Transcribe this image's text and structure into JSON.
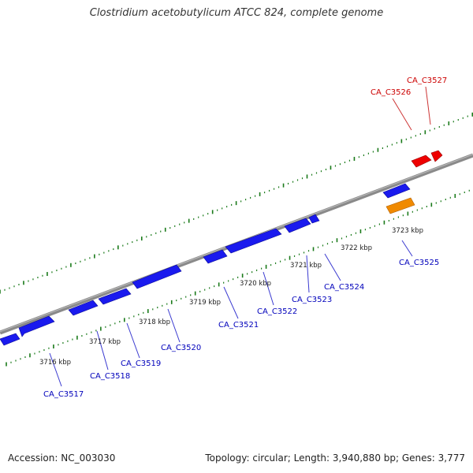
{
  "title": "Clostridium acetobutylicum ATCC 824, complete genome",
  "footer": {
    "accession": "Accession: NC_003030",
    "summary": "Topology: circular; Length: 3,940,880 bp; Genes: 3,777"
  },
  "colors": {
    "forward_gene": "#ee0000",
    "reverse_gene": "#1a1aee",
    "rna_gene": "#f08a00",
    "backbone": "#888888",
    "ticks": "#1a7a1a",
    "forward_label": "#cc0000",
    "reverse_label": "#0000bb",
    "kbp_label": "#222222"
  },
  "kbp_labels": [
    {
      "text": "3716 kbp"
    },
    {
      "text": "3717 kbp"
    },
    {
      "text": "3718 kbp"
    },
    {
      "text": "3719 kbp"
    },
    {
      "text": "3720 kbp"
    },
    {
      "text": "3721 kbp"
    },
    {
      "text": "3722 kbp"
    },
    {
      "text": "3723 kbp"
    }
  ],
  "gene_labels": [
    {
      "text": "CA_C3517",
      "strand": "reverse"
    },
    {
      "text": "CA_C3518",
      "strand": "reverse"
    },
    {
      "text": "CA_C3519",
      "strand": "reverse"
    },
    {
      "text": "CA_C3520",
      "strand": "reverse"
    },
    {
      "text": "CA_C3521",
      "strand": "reverse"
    },
    {
      "text": "CA_C3522",
      "strand": "reverse"
    },
    {
      "text": "CA_C3523",
      "strand": "reverse"
    },
    {
      "text": "CA_C3524",
      "strand": "reverse"
    },
    {
      "text": "CA_C3525",
      "strand": "reverse"
    },
    {
      "text": "CA_C3526",
      "strand": "forward"
    },
    {
      "text": "CA_C3527",
      "strand": "forward"
    }
  ]
}
